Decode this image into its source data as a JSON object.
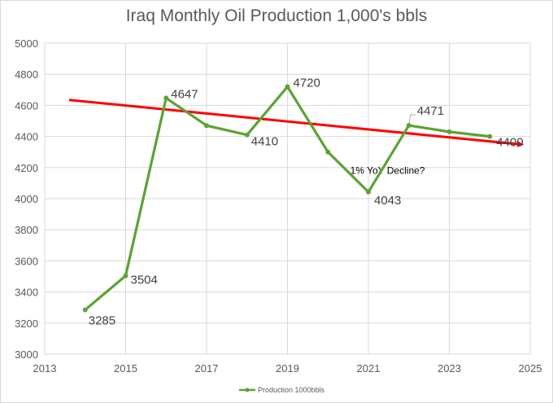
{
  "chart_data": {
    "type": "scatter",
    "title": "Iraq Monthly Oil Production 1,000's bbls",
    "xlabel": "",
    "ylabel": "",
    "xlim": [
      2013,
      2025
    ],
    "ylim": [
      3000,
      5000
    ],
    "x_ticks": [
      2013,
      2015,
      2017,
      2019,
      2021,
      2023,
      2025
    ],
    "y_ticks": [
      3000,
      3200,
      3400,
      3600,
      3800,
      4000,
      4200,
      4400,
      4600,
      4800,
      5000
    ],
    "grid": {
      "vertical": true,
      "horizontal": true
    },
    "legend_position": "bottom",
    "series": [
      {
        "name": "Production 1000bbls",
        "color": "#5ba336",
        "marker": "circle",
        "points": [
          {
            "x": 2014,
            "y": 3285,
            "label": "3285"
          },
          {
            "x": 2015,
            "y": 3504,
            "label": "3504"
          },
          {
            "x": 2016,
            "y": 4647,
            "label": "4647"
          },
          {
            "x": 2017,
            "y": 4470,
            "label": ""
          },
          {
            "x": 2018,
            "y": 4410,
            "label": "4410"
          },
          {
            "x": 2019,
            "y": 4720,
            "label": "4720"
          },
          {
            "x": 2020,
            "y": 4300,
            "label": ""
          },
          {
            "x": 2021,
            "y": 4043,
            "label": "4043"
          },
          {
            "x": 2022,
            "y": 4471,
            "label": "4471"
          },
          {
            "x": 2023,
            "y": 4430,
            "label": ""
          },
          {
            "x": 2024,
            "y": 4400,
            "label": "4400"
          }
        ]
      }
    ],
    "trendline": {
      "color": "#ff0000",
      "start": {
        "x": 2013.6,
        "y": 4635
      },
      "end": {
        "x": 2024.8,
        "y": 4348
      },
      "annotation": "1% YoY Decline?"
    }
  }
}
